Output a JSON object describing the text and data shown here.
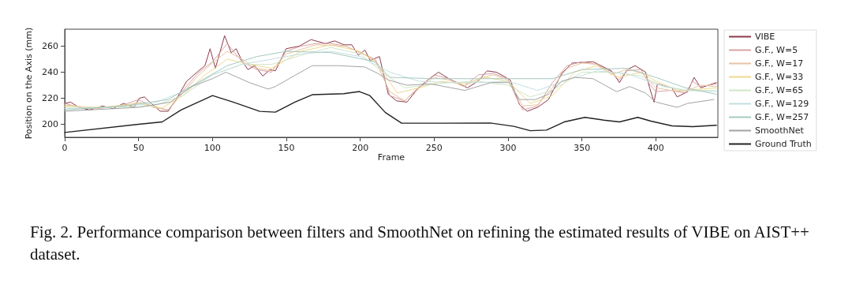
{
  "chart_data": {
    "type": "line",
    "xlabel": "Frame",
    "ylabel": "Position on the Axis (mm)",
    "xlim": [
      0,
      442
    ],
    "ylim": [
      190,
      273
    ],
    "xticks": [
      0,
      50,
      100,
      150,
      200,
      250,
      300,
      350,
      400
    ],
    "yticks": [
      200,
      220,
      240,
      260
    ],
    "grid": false,
    "legend": "right",
    "marker": "none",
    "line_style": "solid",
    "annotations": [
      "Fig. 2. Performance comparison between filters and SmoothNet on refining the estimated results of VIBE on AIST++ dataset."
    ],
    "series": [
      {
        "name": "VIBE",
        "color": "#8b3a4a",
        "x": [
          0,
          4,
          9.6,
          16.7,
          25.6,
          32.7,
          39.8,
          46.9,
          50.5,
          54,
          57.6,
          64.7,
          70,
          75.4,
          82.5,
          89.6,
          94.9,
          98.4,
          102,
          108.2,
          112.7,
          116,
          119.8,
          124,
          128.6,
          134,
          139,
          142.6,
          149.8,
          158.7,
          166.7,
          176.5,
          182.7,
          189,
          194.3,
          198.7,
          203.2,
          206.7,
          213,
          219,
          224.5,
          231.6,
          238.7,
          245.8,
          252.9,
          260,
          272.5,
          279.6,
          285.8,
          292,
          297,
          301.5,
          307.8,
          313,
          320,
          327.4,
          336.3,
          343.4,
          357.5,
          361,
          370,
          375.4,
          380.7,
          386,
          393.1,
          395.8,
          398.8,
          401.1,
          410.9,
          414.4,
          421.5,
          425.9,
          430.4,
          435.7,
          441
        ],
        "values": [
          216,
          217,
          213,
          211,
          214,
          212,
          216,
          213,
          220,
          221,
          217,
          210,
          210,
          219,
          233,
          240,
          245,
          258,
          243,
          268,
          255,
          258,
          249,
          242,
          245,
          237,
          242,
          241,
          258,
          260,
          265,
          262,
          264,
          261,
          261,
          253,
          257,
          249,
          252,
          223,
          218,
          217,
          227,
          234,
          240,
          235,
          228,
          233,
          241,
          240,
          237,
          234,
          215,
          210,
          213,
          219,
          239,
          247,
          248,
          246,
          241,
          232,
          242,
          245,
          240,
          228,
          217,
          231,
          228,
          221,
          225,
          236,
          228,
          230,
          232
        ]
      },
      {
        "name": "G.F., W=5",
        "color": "#d9a3a6",
        "x": [
          0,
          10,
          20,
          30,
          40,
          50,
          60,
          70,
          80,
          90,
          100,
          105,
          110,
          115,
          120,
          130,
          140,
          150,
          160,
          170,
          180,
          190,
          200,
          210,
          215,
          220,
          230,
          240,
          250,
          260,
          270,
          280,
          290,
          300,
          305,
          310,
          320,
          330,
          340,
          350,
          360,
          370,
          375,
          380,
          390,
          395,
          400,
          410,
          420,
          425,
          430,
          441
        ],
        "values": [
          216,
          213,
          212,
          213,
          215,
          219,
          213,
          211,
          226,
          239,
          248,
          255,
          262,
          255,
          248,
          242,
          240,
          256,
          260,
          262,
          262,
          260,
          255,
          250,
          240,
          222,
          218,
          229,
          238,
          235,
          229,
          238,
          239,
          235,
          222,
          211,
          214,
          232,
          245,
          248,
          246,
          240,
          234,
          241,
          242,
          232,
          225,
          226,
          224,
          233,
          229,
          231
        ]
      },
      {
        "name": "G.F., W=17",
        "color": "#e6c4a2",
        "x": [
          0,
          20,
          40,
          50,
          60,
          70,
          80,
          90,
          100,
          110,
          120,
          130,
          140,
          150,
          170,
          190,
          200,
          210,
          220,
          230,
          240,
          250,
          260,
          270,
          280,
          290,
          300,
          310,
          320,
          330,
          340,
          350,
          360,
          370,
          380,
          390,
          400,
          410,
          420,
          430,
          441
        ],
        "values": [
          215,
          212,
          214,
          217,
          214,
          211,
          224,
          237,
          247,
          256,
          250,
          243,
          241,
          254,
          261,
          260,
          255,
          249,
          225,
          218,
          228,
          236,
          234,
          229,
          235,
          238,
          234,
          214,
          215,
          228,
          243,
          247,
          246,
          238,
          242,
          240,
          228,
          226,
          225,
          230,
          229
        ]
      },
      {
        "name": "G.F., W=33",
        "color": "#eed98f",
        "x": [
          0,
          25,
          50,
          65,
          80,
          95,
          110,
          125,
          140,
          160,
          180,
          200,
          212,
          225,
          240,
          255,
          270,
          285,
          300,
          315,
          330,
          345,
          360,
          375,
          390,
          400,
          415,
          430,
          441
        ],
        "values": [
          214,
          213,
          216,
          212,
          222,
          238,
          250,
          246,
          243,
          256,
          261,
          256,
          246,
          224,
          228,
          233,
          231,
          236,
          233,
          216,
          222,
          240,
          245,
          236,
          240,
          233,
          226,
          227,
          228
        ]
      },
      {
        "name": "G.F., W=65",
        "color": "#cfe6c6",
        "x": [
          0,
          30,
          60,
          80,
          100,
          120,
          140,
          160,
          180,
          200,
          215,
          230,
          245,
          260,
          280,
          300,
          315,
          330,
          350,
          370,
          390,
          405,
          420,
          441
        ],
        "values": [
          213,
          213,
          214,
          222,
          238,
          246,
          246,
          253,
          259,
          254,
          240,
          228,
          230,
          232,
          233,
          230,
          221,
          226,
          240,
          240,
          237,
          229,
          226,
          226
        ]
      },
      {
        "name": "G.F., W=129",
        "color": "#c4dfe0",
        "x": [
          0,
          30,
          60,
          80,
          100,
          120,
          140,
          160,
          180,
          200,
          220,
          240,
          260,
          280,
          300,
          320,
          340,
          360,
          380,
          400,
          420,
          441
        ],
        "values": [
          212,
          213,
          216,
          225,
          238,
          246,
          250,
          254,
          256,
          252,
          240,
          233,
          232,
          232,
          233,
          226,
          234,
          241,
          239,
          231,
          226,
          225
        ]
      },
      {
        "name": "G.F., W=257",
        "color": "#a6c9bf",
        "x": [
          0,
          40,
          70,
          90,
          110,
          130,
          150,
          180,
          210,
          220,
          250,
          280,
          300,
          330,
          350,
          380,
          400,
          420,
          441
        ],
        "values": [
          211,
          214,
          219,
          232,
          245,
          252,
          256,
          255,
          248,
          236,
          235,
          235,
          235,
          235,
          242,
          243,
          236,
          228,
          223
        ]
      },
      {
        "name": "SmoothNet",
        "color": "#a3a3a3",
        "x": [
          0,
          50,
          71.6,
          86,
          100,
          109,
          125,
          137.7,
          142.6,
          155,
          167.5,
          185,
          203,
          212,
          219,
          231.6,
          247.6,
          270.7,
          288.5,
          300.7,
          307.8,
          318.5,
          327.4,
          336.3,
          345,
          357.5,
          373.5,
          382.4,
          393,
          400.2,
          414.4,
          421.5,
          439.3
        ],
        "values": [
          210,
          213,
          217,
          229,
          235,
          240,
          232,
          227,
          229,
          237,
          245,
          245,
          244,
          239,
          234,
          230,
          231,
          226,
          232,
          232,
          219,
          219,
          223,
          233,
          236,
          235,
          225,
          229,
          224,
          217,
          213,
          216,
          219
        ]
      },
      {
        "name": "Ground Truth",
        "color": "#222222",
        "x": [
          0,
          50,
          66,
          78.7,
          100,
          114,
          132,
          142.6,
          155.8,
          167.5,
          188.8,
          199.4,
          206.5,
          217,
          228,
          256,
          288,
          304,
          315,
          326,
          338,
          352,
          364.7,
          375.4,
          387.8,
          396.7,
          410.9,
          425,
          441
        ],
        "values": [
          193.7,
          200,
          201.8,
          211,
          222,
          217,
          209.9,
          209.3,
          217,
          222.7,
          223.5,
          225.1,
          222,
          209,
          200.8,
          200.8,
          201,
          198.4,
          195.1,
          195.5,
          201.8,
          205.3,
          203.2,
          201.8,
          205.3,
          202.4,
          198.8,
          198.2,
          199.2
        ]
      }
    ]
  }
}
